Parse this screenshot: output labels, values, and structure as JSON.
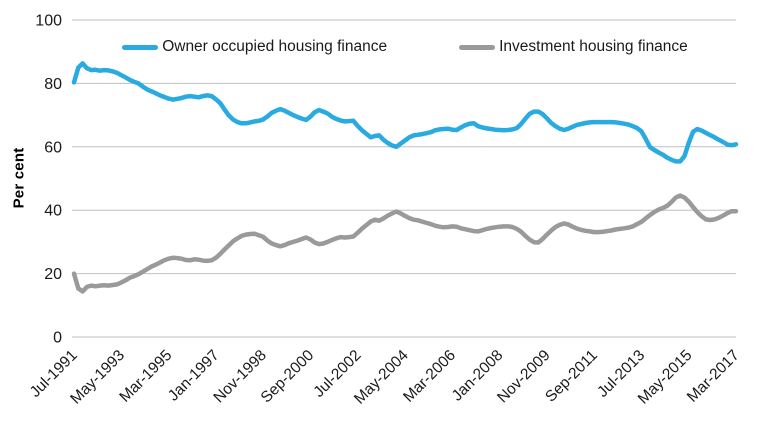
{
  "figure": {
    "kind": "line-chart",
    "background": "#ffffff",
    "gridline_color": "#bfbfbf",
    "text_color": "#1a1a1a"
  },
  "y_axis": {
    "title": "Per cent",
    "ticks": [
      0,
      20,
      40,
      60,
      80,
      100
    ]
  },
  "chart_data": {
    "type": "line",
    "title": "",
    "xlabel": "",
    "ylabel": "Per cent",
    "ylim": [
      0,
      100
    ],
    "grid": "horizontal",
    "legend_position": "top-center",
    "x_start": "Jul-1991",
    "x_end": "Mar-2017",
    "sampling": "every 2 months",
    "x_tick_labels": [
      "Jul-1991",
      "May-1993",
      "Mar-1995",
      "Jan-1997",
      "Nov-1998",
      "Sep-2000",
      "Jul-2002",
      "May-2004",
      "Mar-2006",
      "Jan-2008",
      "Nov-2009",
      "Sep-2011",
      "Jul-2013",
      "May-2015",
      "Mar-2017"
    ],
    "x_tick_every_points": 11,
    "series": [
      {
        "name": "Owner occupied housing finance",
        "color": "#29ABE2",
        "values": [
          80.3,
          85.0,
          86.3,
          84.8,
          84.2,
          84.3,
          84.0,
          84.2,
          84.1,
          83.8,
          83.3,
          82.6,
          81.9,
          81.1,
          80.5,
          80.0,
          79.0,
          78.1,
          77.5,
          76.9,
          76.2,
          75.7,
          75.2,
          74.9,
          75.1,
          75.4,
          75.8,
          76.0,
          75.8,
          75.6,
          76.0,
          76.2,
          76.0,
          75.0,
          73.8,
          71.8,
          69.9,
          68.6,
          67.8,
          67.4,
          67.4,
          67.7,
          68.0,
          68.2,
          68.6,
          69.6,
          70.7,
          71.4,
          71.9,
          71.4,
          70.7,
          70.0,
          69.4,
          68.9,
          68.5,
          69.5,
          70.9,
          71.6,
          71.1,
          70.5,
          69.5,
          68.8,
          68.3,
          68.0,
          68.1,
          68.2,
          66.6,
          65.2,
          64.1,
          63.0,
          63.4,
          63.6,
          62.2,
          61.2,
          60.4,
          60.0,
          61.0,
          62.0,
          63.0,
          63.6,
          63.8,
          64.0,
          64.3,
          64.6,
          65.2,
          65.5,
          65.6,
          65.7,
          65.4,
          65.3,
          66.1,
          66.8,
          67.3,
          67.4,
          66.5,
          66.1,
          65.8,
          65.6,
          65.4,
          65.3,
          65.2,
          65.3,
          65.5,
          65.9,
          67.2,
          68.9,
          70.4,
          71.1,
          71.1,
          70.3,
          69.0,
          67.5,
          66.5,
          65.7,
          65.3,
          65.7,
          66.3,
          66.9,
          67.2,
          67.5,
          67.7,
          67.8,
          67.8,
          67.8,
          67.8,
          67.8,
          67.7,
          67.5,
          67.3,
          67.0,
          66.5,
          65.9,
          64.9,
          62.5,
          59.9,
          59.0,
          58.2,
          57.5,
          56.6,
          55.9,
          55.4,
          55.4,
          57.0,
          61.2,
          64.7,
          65.6,
          65.1,
          64.4,
          63.7,
          63.0,
          62.2,
          61.5,
          60.7,
          60.5,
          60.8
        ]
      },
      {
        "name": "Investment housing finance",
        "color": "#9A9A9A",
        "values": [
          20.0,
          15.3,
          14.4,
          15.8,
          16.2,
          16.0,
          16.2,
          16.3,
          16.2,
          16.4,
          16.6,
          17.2,
          17.9,
          18.7,
          19.2,
          19.8,
          20.6,
          21.4,
          22.2,
          22.8,
          23.5,
          24.2,
          24.7,
          25.0,
          24.9,
          24.7,
          24.3,
          24.2,
          24.5,
          24.4,
          24.1,
          24.0,
          24.2,
          25.0,
          26.2,
          27.6,
          28.9,
          30.2,
          31.1,
          31.9,
          32.3,
          32.5,
          32.6,
          32.1,
          31.6,
          30.4,
          29.5,
          29.0,
          28.6,
          29.0,
          29.6,
          30.0,
          30.4,
          30.9,
          31.4,
          30.8,
          29.8,
          29.3,
          29.5,
          30.0,
          30.6,
          31.1,
          31.5,
          31.4,
          31.5,
          31.7,
          32.9,
          34.2,
          35.3,
          36.4,
          37.0,
          36.7,
          37.4,
          38.3,
          39.0,
          39.6,
          39.0,
          38.2,
          37.5,
          37.0,
          36.8,
          36.4,
          36.0,
          35.6,
          35.1,
          34.8,
          34.6,
          34.7,
          34.9,
          34.8,
          34.3,
          34.0,
          33.7,
          33.4,
          33.3,
          33.7,
          34.1,
          34.4,
          34.6,
          34.8,
          34.9,
          34.9,
          34.7,
          34.1,
          33.2,
          31.9,
          30.7,
          29.9,
          29.8,
          30.9,
          32.3,
          33.6,
          34.7,
          35.4,
          35.8,
          35.5,
          34.8,
          34.2,
          33.8,
          33.5,
          33.3,
          33.1,
          33.1,
          33.2,
          33.4,
          33.6,
          33.9,
          34.1,
          34.3,
          34.5,
          34.9,
          35.6,
          36.3,
          37.4,
          38.5,
          39.4,
          40.2,
          40.7,
          41.4,
          42.6,
          44.0,
          44.6,
          44.0,
          42.7,
          41.0,
          39.4,
          38.1,
          37.1,
          36.9,
          37.1,
          37.6,
          38.3,
          39.1,
          39.7,
          39.7
        ]
      }
    ]
  }
}
